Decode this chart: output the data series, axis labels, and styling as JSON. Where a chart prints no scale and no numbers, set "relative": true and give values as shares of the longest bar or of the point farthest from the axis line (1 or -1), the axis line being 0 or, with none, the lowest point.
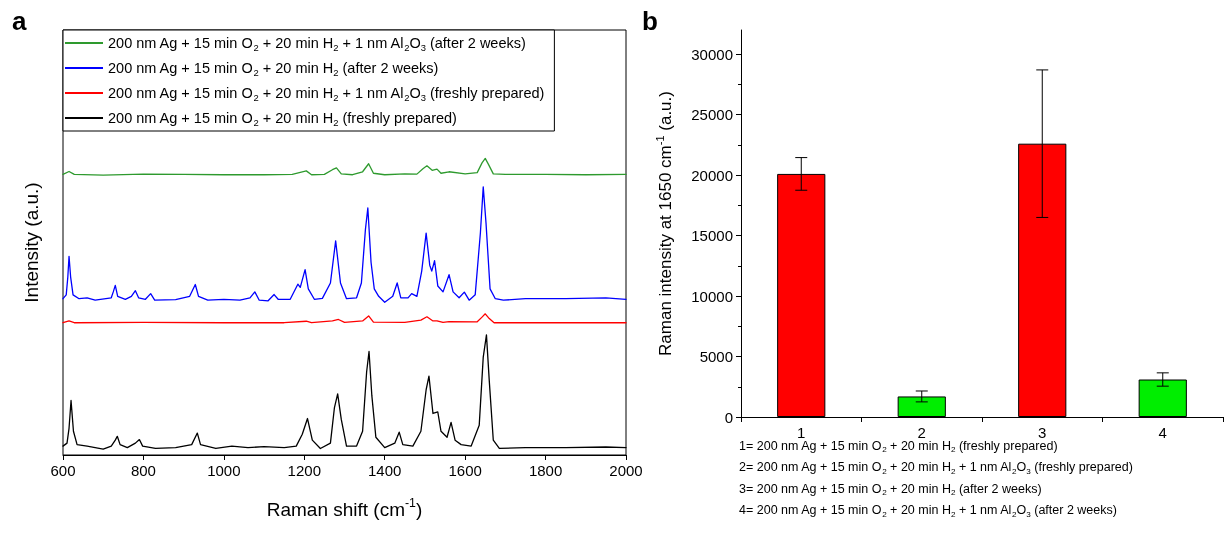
{
  "chart_data": [
    {
      "type": "line",
      "relative": true,
      "xlabel": "Raman shift (cm$^{-1}$)",
      "ylabel": "Intensity (a.u.)",
      "xlim": [
        600,
        2000
      ],
      "xticks": [
        600,
        800,
        1000,
        1200,
        1400,
        1600,
        1800,
        2000
      ],
      "tick_labels": "x",
      "legend": "top left",
      "marker": "none",
      "line_style": "solid",
      "grid": false,
      "annotations": [
        "a"
      ],
      "series": [
        {
          "name": "200 nm Ag + 15 min O$_{2}$ + 20 min H$_{2}$ + 1 nm Al$_{2}$O$_{3}$ (after 2 weeks)",
          "color": "#2e9a2e",
          "x": [
            600,
            615,
            628,
            700,
            800,
            900,
            1000,
            1100,
            1170,
            1195,
            1205,
            1218,
            1250,
            1270,
            1280,
            1292,
            1320,
            1345,
            1360,
            1372,
            1400,
            1450,
            1480,
            1495,
            1505,
            1518,
            1530,
            1540,
            1560,
            1600,
            1630,
            1642,
            1650,
            1658,
            1670,
            1700,
            1800,
            1900,
            2000
          ],
          "values": [
            0.946,
            0.956,
            0.946,
            0.944,
            0.947,
            0.946,
            0.945,
            0.945,
            0.946,
            0.955,
            0.958,
            0.945,
            0.946,
            0.962,
            0.968,
            0.948,
            0.945,
            0.955,
            0.982,
            0.95,
            0.945,
            0.948,
            0.947,
            0.965,
            0.975,
            0.96,
            0.964,
            0.95,
            0.955,
            0.948,
            0.952,
            0.985,
            1.0,
            0.98,
            0.948,
            0.946,
            0.946,
            0.945,
            0.946
          ]
        },
        {
          "name": "200 nm Ag + 15 min O$_{2}$ + 20 min H$_{2}$ (after 2 weeks)",
          "color": "#0000ff",
          "x": [
            600,
            608,
            612,
            615,
            619,
            625,
            640,
            660,
            680,
            720,
            725,
            730,
            736,
            755,
            770,
            780,
            788,
            805,
            818,
            828,
            880,
            915,
            929,
            937,
            960,
            1000,
            1040,
            1065,
            1077,
            1088,
            1110,
            1125,
            1135,
            1165,
            1184,
            1190,
            1202,
            1210,
            1225,
            1245,
            1265,
            1278,
            1290,
            1305,
            1330,
            1342,
            1352,
            1358,
            1366,
            1374,
            1385,
            1400,
            1420,
            1431,
            1440,
            1458,
            1467,
            1480,
            1492,
            1503,
            1512,
            1517,
            1524,
            1532,
            1545,
            1560,
            1570,
            1585,
            1598,
            1610,
            1625,
            1638,
            1645,
            1652,
            1662,
            1675,
            1695,
            1750,
            1850,
            1950,
            2000
          ],
          "values": [
            0.527,
            0.54,
            0.6,
            0.67,
            0.6,
            0.54,
            0.527,
            0.53,
            0.522,
            0.53,
            0.55,
            0.572,
            0.535,
            0.525,
            0.535,
            0.554,
            0.53,
            0.525,
            0.544,
            0.522,
            0.524,
            0.535,
            0.575,
            0.535,
            0.522,
            0.525,
            0.522,
            0.53,
            0.55,
            0.522,
            0.52,
            0.541,
            0.525,
            0.525,
            0.576,
            0.565,
            0.625,
            0.56,
            0.525,
            0.528,
            0.58,
            0.722,
            0.58,
            0.527,
            0.53,
            0.58,
            0.76,
            0.833,
            0.65,
            0.56,
            0.535,
            0.515,
            0.535,
            0.58,
            0.53,
            0.53,
            0.544,
            0.535,
            0.62,
            0.748,
            0.64,
            0.62,
            0.655,
            0.57,
            0.55,
            0.608,
            0.55,
            0.53,
            0.549,
            0.522,
            0.54,
            0.75,
            0.904,
            0.78,
            0.56,
            0.527,
            0.522,
            0.527,
            0.527,
            0.53,
            0.525
          ]
        },
        {
          "name": "200 nm Ag + 15 min O$_{2}$ + 20 min H$_{2}$ + 1 nm Al$_{2}$O$_{3}$ (freshly prepared)",
          "color": "#ff0000",
          "x": [
            600,
            615,
            628,
            800,
            1000,
            1150,
            1205,
            1218,
            1270,
            1285,
            1300,
            1345,
            1360,
            1372,
            1450,
            1490,
            1505,
            1520,
            1530,
            1545,
            1560,
            1630,
            1642,
            1650,
            1660,
            1672,
            1800,
            2000
          ],
          "values": [
            0.446,
            0.452,
            0.446,
            0.447,
            0.446,
            0.446,
            0.451,
            0.446,
            0.452,
            0.457,
            0.447,
            0.452,
            0.469,
            0.448,
            0.447,
            0.455,
            0.466,
            0.452,
            0.452,
            0.447,
            0.45,
            0.449,
            0.465,
            0.476,
            0.46,
            0.446,
            0.446,
            0.446
          ]
        },
        {
          "name": "200 nm Ag + 15 min O$_{2}$ + 20 min H$_{2}$ (freshly prepared)",
          "color": "#000000",
          "x": [
            600,
            610,
            615,
            620,
            626,
            635,
            660,
            680,
            700,
            720,
            730,
            735,
            742,
            760,
            780,
            790,
            798,
            830,
            880,
            920,
            934,
            942,
            980,
            1020,
            1060,
            1100,
            1150,
            1180,
            1195,
            1208,
            1220,
            1240,
            1265,
            1275,
            1283,
            1292,
            1305,
            1330,
            1345,
            1355,
            1361,
            1368,
            1378,
            1400,
            1425,
            1436,
            1445,
            1470,
            1490,
            1503,
            1510,
            1520,
            1532,
            1540,
            1555,
            1565,
            1575,
            1590,
            1615,
            1635,
            1645,
            1653,
            1660,
            1670,
            1685,
            1750,
            1850,
            1950,
            2000
          ],
          "values": [
            0.03,
            0.04,
            0.09,
            0.184,
            0.08,
            0.035,
            0.03,
            0.025,
            0.02,
            0.03,
            0.05,
            0.063,
            0.035,
            0.025,
            0.04,
            0.052,
            0.03,
            0.022,
            0.025,
            0.035,
            0.074,
            0.035,
            0.022,
            0.03,
            0.025,
            0.028,
            0.025,
            0.03,
            0.07,
            0.123,
            0.05,
            0.022,
            0.04,
            0.16,
            0.206,
            0.12,
            0.03,
            0.03,
            0.08,
            0.28,
            0.349,
            0.2,
            0.06,
            0.025,
            0.04,
            0.077,
            0.035,
            0.03,
            0.08,
            0.22,
            0.266,
            0.14,
            0.145,
            0.08,
            0.06,
            0.11,
            0.05,
            0.035,
            0.03,
            0.1,
            0.33,
            0.405,
            0.25,
            0.05,
            0.022,
            0.025,
            0.025,
            0.027,
            0.025
          ]
        }
      ]
    },
    {
      "type": "bar",
      "ylabel": "Raman intensity at 1650 cm$^{-1}$ (a.u.)",
      "categories": [
        "1",
        "2",
        "3",
        "4"
      ],
      "values": [
        20100,
        1700,
        22600,
        3100
      ],
      "errors": [
        1350,
        450,
        6100,
        550
      ],
      "colors": [
        "#ff0000",
        "#00ee00",
        "#ff0000",
        "#00ee00"
      ],
      "ylim": [
        0,
        32000
      ],
      "yticks": [
        0,
        5000,
        10000,
        15000,
        20000,
        25000,
        30000
      ],
      "grid": false,
      "legend": false,
      "annotations": [
        "b",
        "1= 200 nm Ag + 15 min O$_{2}$ + 20 min H$_{2}$ (freshly prepared)",
        "2= 200 nm Ag + 15 min O$_{2}$ + 20 min H$_{2}$ + 1 nm Al$_{2}$O$_{3}$ (freshly prepared)",
        "3= 200 nm Ag + 15 min O$_{2}$ + 20 min H$_{2}$ (after 2 weeks)",
        "4= 200 nm Ag + 15 min O$_{2}$ + 20 min H$_{2}$ + 1 nm Al$_{2}$O$_{3}$ (after 2 weeks)"
      ]
    }
  ]
}
